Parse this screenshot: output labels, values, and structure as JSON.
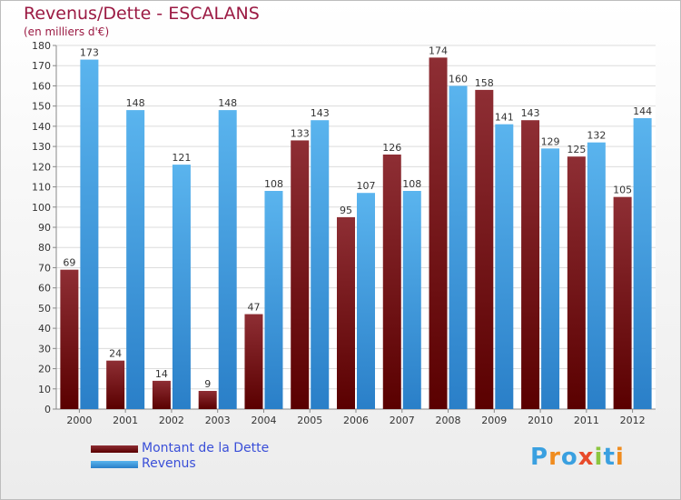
{
  "header": {
    "title": "Revenus/Dette - ESCALANS",
    "subtitle": "(en milliers d'€)"
  },
  "legend": {
    "debt_label": "Montant de la Dette",
    "revenue_label": "Revenus"
  },
  "logo": {
    "text": "Proxiti",
    "letter_colors": [
      "#3aa0e0",
      "#f08c1e",
      "#3aa0e0",
      "#e84a2a",
      "#8cc63f",
      "#3aa0e0",
      "#f08c1e"
    ]
  },
  "colors": {
    "debt_dark": "#5a0000",
    "debt_light": "#8e2e34",
    "revenue_dark": "#2a7fc8",
    "revenue_light": "#5ab4ee",
    "axis_text": "#333333",
    "grid": "#dcdcdc"
  },
  "chart_data": {
    "type": "bar",
    "title": "Revenus/Dette - ESCALANS",
    "subtitle": "(en milliers d'€)",
    "categories": [
      "2000",
      "2001",
      "2002",
      "2003",
      "2004",
      "2005",
      "2006",
      "2007",
      "2008",
      "2009",
      "2010",
      "2011",
      "2012"
    ],
    "series": [
      {
        "name": "Montant de la Dette",
        "values": [
          69,
          24,
          14,
          9,
          47,
          133,
          95,
          126,
          174,
          158,
          143,
          125,
          105
        ]
      },
      {
        "name": "Revenus",
        "values": [
          173,
          148,
          121,
          148,
          108,
          143,
          107,
          108,
          160,
          141,
          129,
          132,
          144
        ]
      }
    ],
    "ylim": [
      0,
      180
    ],
    "ytick_step": 10,
    "grid": true,
    "legend_position": "bottom-left"
  }
}
